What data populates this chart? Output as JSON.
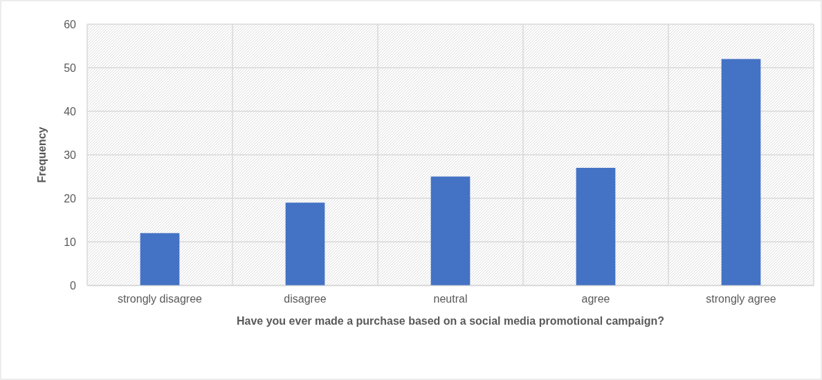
{
  "chart_data": {
    "type": "bar",
    "xlabel": "Have you ever made a purchase based on a social media promotional campaign?",
    "ylabel": "Frequency",
    "categories": [
      "strongly disagree",
      "disagree",
      "neutral",
      "agree",
      "strongly agree"
    ],
    "values": [
      12,
      19,
      25,
      27,
      52
    ],
    "color": "#4472c4",
    "ylim": [
      0,
      60
    ],
    "yticks": [
      0,
      10,
      20,
      30,
      40,
      50,
      60
    ],
    "grid": true
  }
}
